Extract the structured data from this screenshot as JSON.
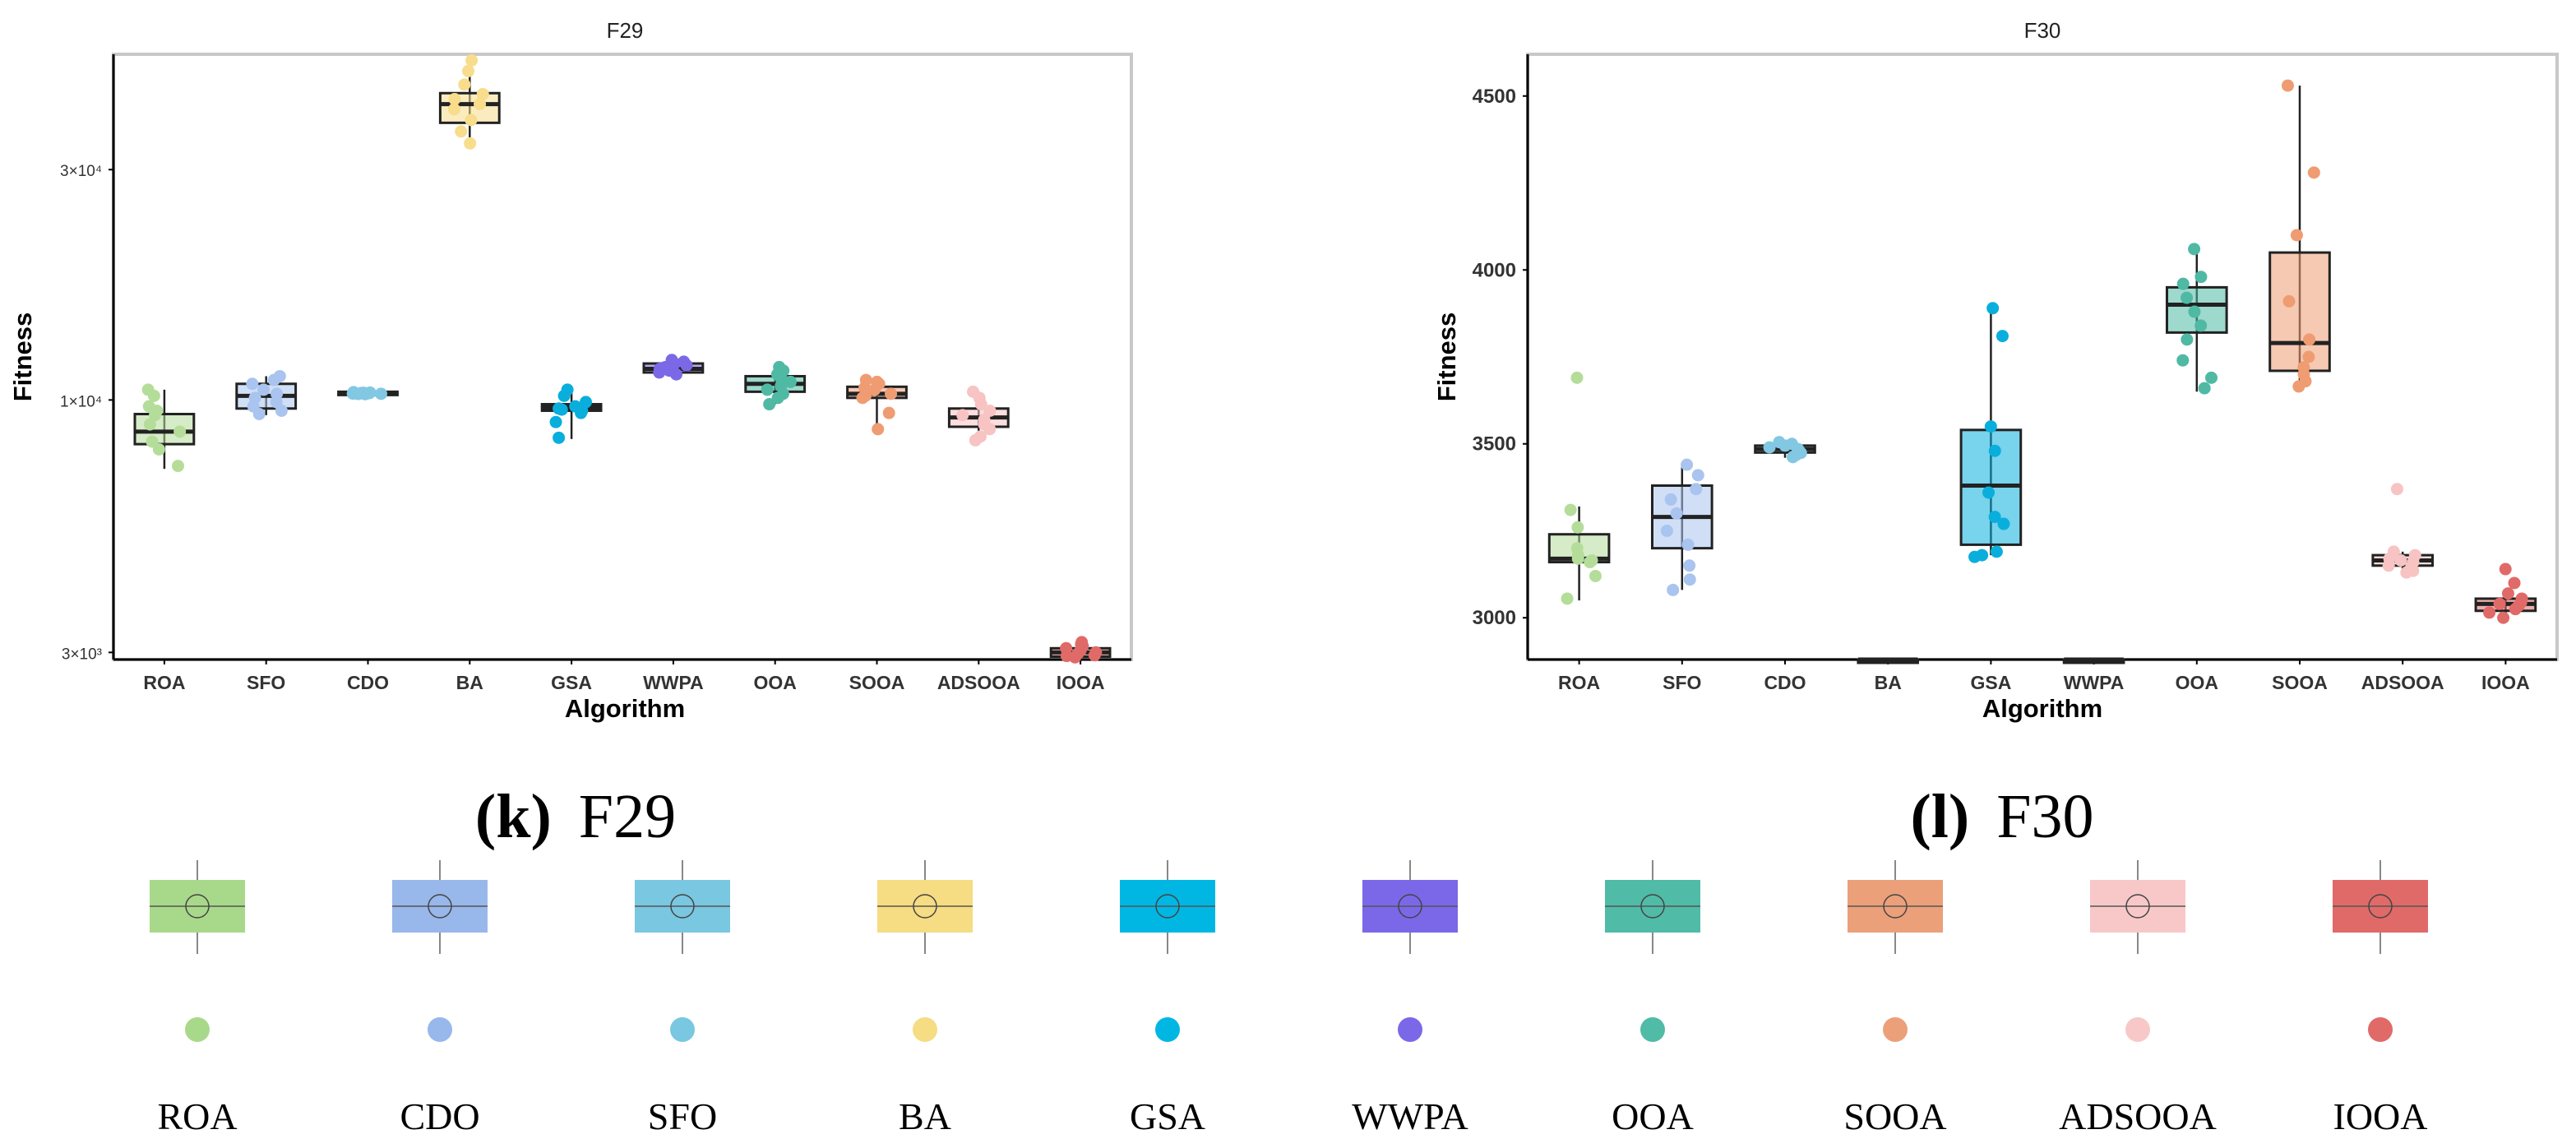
{
  "chart_data": [
    {
      "type": "boxplot",
      "id": "F29",
      "title": "F29",
      "caption_letter": "(k)",
      "caption_text": "F29",
      "xlabel": "Algorithm",
      "ylabel": "Fitness",
      "yscale": "log",
      "ylim": [
        2900,
        52000
      ],
      "yticks": [
        {
          "value": 3000,
          "label": "3×10³"
        },
        {
          "value": 10000,
          "label": "1×10⁴"
        },
        {
          "value": 30000,
          "label": "3×10⁴"
        }
      ],
      "series": [
        {
          "name": "ROA",
          "color": "#b5dd9a",
          "min": 7200,
          "q1": 8100,
          "median": 8600,
          "q3": 9350,
          "max": 10500,
          "points": [
            10500,
            10200,
            9700,
            9500,
            9300,
            8900,
            8600,
            8200,
            7900,
            7300
          ]
        },
        {
          "name": "SFO",
          "color": "#a9c4ee",
          "min": 9300,
          "q1": 9600,
          "median": 10200,
          "q3": 10800,
          "max": 11200,
          "points": [
            11200,
            11000,
            10800,
            10500,
            10300,
            10100,
            9900,
            9700,
            9500,
            9350
          ]
        },
        {
          "name": "CDO",
          "color": "#82c8e3",
          "min": 10250,
          "q1": 10300,
          "median": 10350,
          "q3": 10400,
          "max": 10450,
          "points": [
            10380,
            10360,
            10350,
            10340,
            10330,
            10320,
            10310,
            10300,
            10290,
            10280
          ]
        },
        {
          "name": "BA",
          "color": "#f7dd8c",
          "min": 33500,
          "q1": 37500,
          "median": 41000,
          "q3": 43200,
          "max": 50500,
          "points": [
            50500,
            48000,
            45000,
            43000,
            42000,
            41000,
            40000,
            38000,
            36000,
            34000
          ]
        },
        {
          "name": "GSA",
          "color": "#0aaedc",
          "min": 8300,
          "q1": 9500,
          "median": 9650,
          "q3": 9800,
          "max": 10500,
          "points": [
            10500,
            10200,
            9900,
            9700,
            9600,
            9550,
            9500,
            9400,
            9000,
            8350
          ]
        },
        {
          "name": "WWPA",
          "color": "#7b68e6",
          "min": 11200,
          "q1": 11400,
          "median": 11600,
          "q3": 11900,
          "max": 12100,
          "points": [
            12100,
            12000,
            11900,
            11800,
            11700,
            11650,
            11600,
            11500,
            11400,
            11300
          ]
        },
        {
          "name": "OOA",
          "color": "#4fb9a4",
          "min": 9800,
          "q1": 10400,
          "median": 10800,
          "q3": 11200,
          "max": 11750,
          "points": [
            11700,
            11500,
            11300,
            11100,
            10900,
            10700,
            10500,
            10300,
            10100,
            9800
          ]
        },
        {
          "name": "SOOA",
          "color": "#ef9c72",
          "min": 8700,
          "q1": 10100,
          "median": 10300,
          "q3": 10650,
          "max": 11000,
          "points": [
            11000,
            10900,
            10800,
            10600,
            10500,
            10300,
            10200,
            10100,
            9400,
            8700
          ]
        },
        {
          "name": "ADSOOA",
          "color": "#f7c3c3",
          "min": 8200,
          "q1": 8800,
          "median": 9200,
          "q3": 9600,
          "max": 10400,
          "points": [
            10400,
            10100,
            9800,
            9500,
            9300,
            9100,
            8900,
            8700,
            8400,
            8250
          ]
        },
        {
          "name": "IOOA",
          "color": "#e06a68",
          "min": 2920,
          "q1": 2940,
          "median": 3000,
          "q3": 3060,
          "max": 3150,
          "points": [
            3150,
            3120,
            3090,
            3060,
            3030,
            3000,
            2980,
            2960,
            2950,
            2930
          ]
        }
      ]
    },
    {
      "type": "boxplot",
      "id": "F30",
      "title": "F30",
      "caption_letter": "(l)",
      "caption_text": "F30",
      "xlabel": "Algorithm",
      "ylabel": "Fitness",
      "yscale": "linear",
      "ylim": [
        2880,
        4620
      ],
      "yticks": [
        {
          "value": 3000,
          "label": "3000"
        },
        {
          "value": 3500,
          "label": "3500"
        },
        {
          "value": 4000,
          "label": "4000"
        },
        {
          "value": 4500,
          "label": "4500"
        }
      ],
      "series": [
        {
          "name": "ROA",
          "color": "#b5dd9a",
          "min": 3050,
          "q1": 3160,
          "median": 3170,
          "q3": 3240,
          "max": 3320,
          "points": [
            3690,
            3310,
            3260,
            3200,
            3180,
            3170,
            3165,
            3160,
            3120,
            3055
          ]
        },
        {
          "name": "SFO",
          "color": "#a9c4ee",
          "min": 3080,
          "q1": 3200,
          "median": 3290,
          "q3": 3380,
          "max": 3440,
          "points": [
            3440,
            3410,
            3370,
            3340,
            3300,
            3250,
            3210,
            3150,
            3110,
            3080
          ]
        },
        {
          "name": "CDO",
          "color": "#82c8e3",
          "min": 3460,
          "q1": 3475,
          "median": 3485,
          "q3": 3495,
          "max": 3505,
          "points": [
            3505,
            3500,
            3495,
            3490,
            3485,
            3480,
            3478,
            3474,
            3468,
            3462
          ]
        },
        {
          "name": "BA",
          "color": "#f7dd8c",
          "min": 2880,
          "q1": 2880,
          "median": 2880,
          "q3": 2880,
          "max": 2880,
          "points": []
        },
        {
          "name": "GSA",
          "color": "#0aaedc",
          "min": 3180,
          "q1": 3210,
          "median": 3380,
          "q3": 3540,
          "max": 3900,
          "points": [
            3890,
            3810,
            3550,
            3480,
            3360,
            3290,
            3270,
            3190,
            3180,
            3175
          ]
        },
        {
          "name": "WWPA",
          "color": "#7b68e6",
          "min": 2880,
          "q1": 2880,
          "median": 2880,
          "q3": 2880,
          "max": 2880,
          "points": []
        },
        {
          "name": "OOA",
          "color": "#4fb9a4",
          "min": 3650,
          "q1": 3820,
          "median": 3900,
          "q3": 3950,
          "max": 4060,
          "points": [
            4060,
            3980,
            3960,
            3920,
            3880,
            3840,
            3800,
            3740,
            3690,
            3660
          ]
        },
        {
          "name": "SOOA",
          "color": "#ef9c72",
          "min": 3660,
          "q1": 3710,
          "median": 3790,
          "q3": 4050,
          "max": 4530,
          "points": [
            4530,
            4280,
            4100,
            3910,
            3800,
            3750,
            3720,
            3700,
            3680,
            3665
          ]
        },
        {
          "name": "ADSOOA",
          "color": "#f7c3c3",
          "min": 3130,
          "q1": 3150,
          "median": 3165,
          "q3": 3180,
          "max": 3190,
          "points": [
            3370,
            3190,
            3180,
            3170,
            3165,
            3160,
            3150,
            3145,
            3135,
            3130
          ]
        },
        {
          "name": "IOOA",
          "color": "#e06a68",
          "min": 3010,
          "q1": 3020,
          "median": 3040,
          "q3": 3055,
          "max": 3065,
          "points": [
            3140,
            3100,
            3070,
            3055,
            3045,
            3040,
            3035,
            3025,
            3015,
            3000
          ]
        }
      ]
    }
  ],
  "legend": [
    {
      "label": "ROA",
      "color": "#a8d98a"
    },
    {
      "label": "CDO",
      "color": "#98b7ea"
    },
    {
      "label": "SFO",
      "color": "#79c7e1"
    },
    {
      "label": "BA",
      "color": "#f6dc82"
    },
    {
      "label": "GSA",
      "color": "#00b7e3"
    },
    {
      "label": "WWPA",
      "color": "#7a68e8"
    },
    {
      "label": "OOA",
      "color": "#50bba6"
    },
    {
      "label": "SOOA",
      "color": "#eba07a"
    },
    {
      "label": "ADSOOA",
      "color": "#f8c8c8"
    },
    {
      "label": "IOOA",
      "color": "#e06a68"
    }
  ]
}
